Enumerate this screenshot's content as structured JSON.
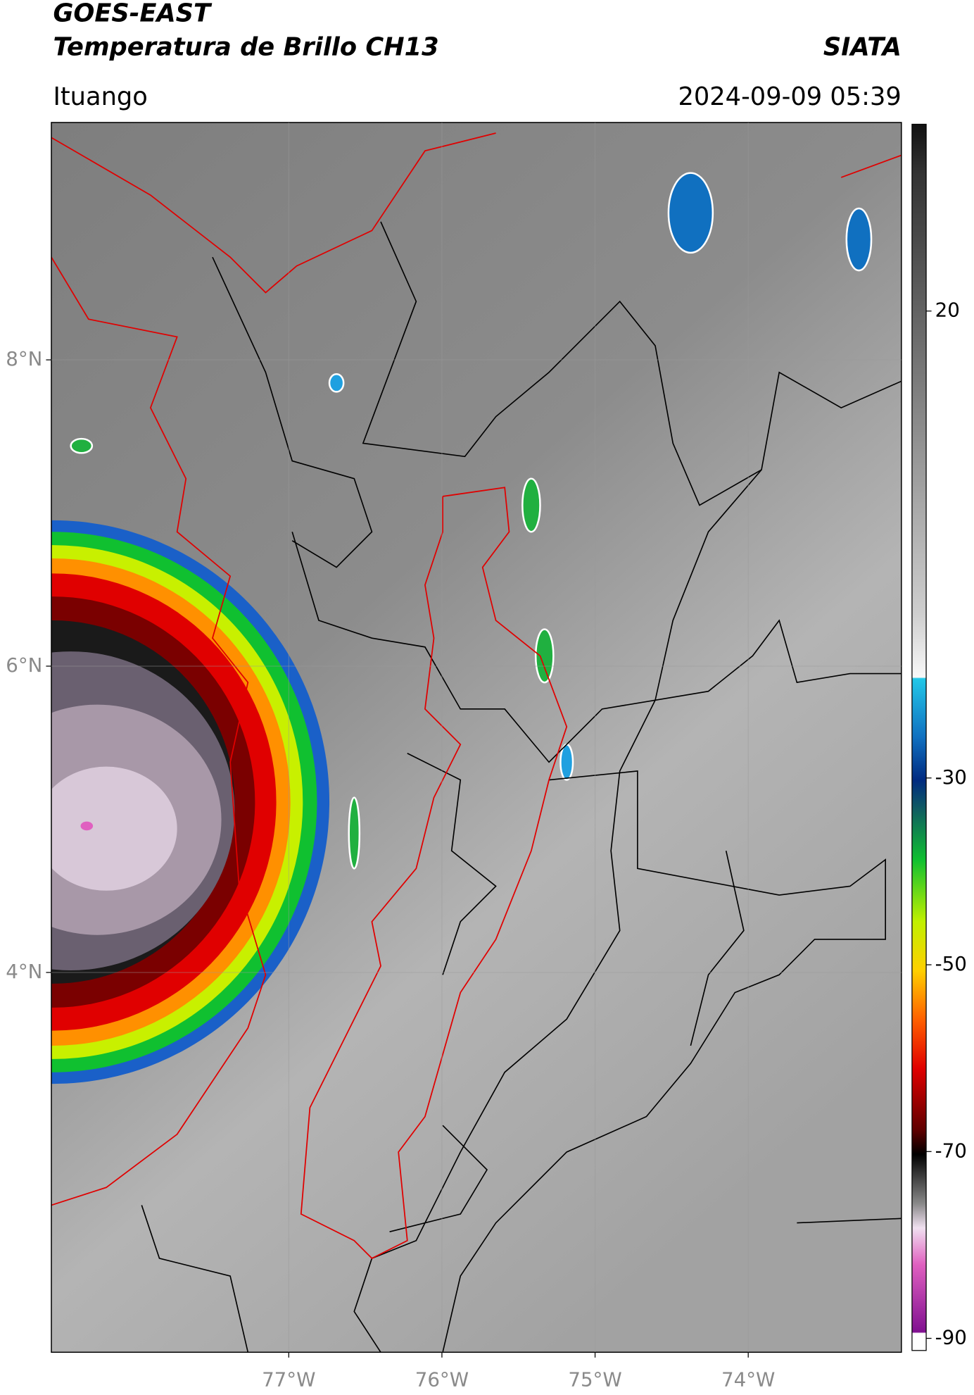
{
  "header": {
    "title": "GOES-EAST",
    "subtitle": "Temperatura de Brillo CH13",
    "source": "SIATA",
    "location": "Ituango",
    "timestamp": "2024-09-09 05:39"
  },
  "map": {
    "xlim": [
      -78.55,
      -73.0
    ],
    "ylim": [
      1.52,
      9.55
    ],
    "xticks": [
      {
        "value": -77,
        "label": "77°W"
      },
      {
        "value": -76,
        "label": "76°W"
      },
      {
        "value": -75,
        "label": "75°W"
      },
      {
        "value": -74,
        "label": "74°W"
      }
    ],
    "yticks": [
      {
        "value": 8,
        "label": "8°N"
      },
      {
        "value": 6,
        "label": "6°N"
      },
      {
        "value": 4,
        "label": "4°N"
      }
    ],
    "grid": true
  },
  "colorbar": {
    "lim": [
      -91.3,
      40
    ],
    "ticks": [
      20,
      -30,
      -50,
      -70,
      -90
    ]
  }
}
